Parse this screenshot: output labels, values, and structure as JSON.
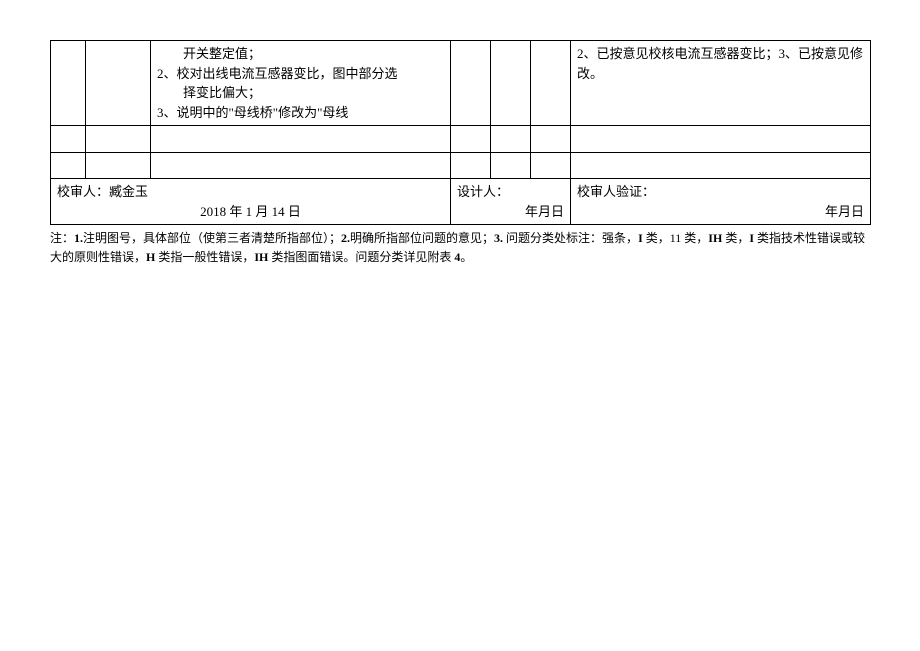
{
  "table": {
    "row1": {
      "col3_line1": "开关整定值；",
      "col3_line2": "2、校对出线电流互感器变比，图中部分选",
      "col3_line3": "择变比偏大；",
      "col3_line4": "3、说明中的\"母线桥\"修改为\"母线",
      "col7": "2、已按意见校核电流互感器变比；3、已按意见修改。"
    },
    "sig": {
      "left_label": "校审人：",
      "left_name": "臧金玉",
      "left_date": "2018 年 1 月 14 日",
      "mid_label": "设计人：",
      "mid_date": "年月日",
      "right_label": "校审人验证：",
      "right_date": "年月日"
    }
  },
  "note": {
    "prefix": "注：",
    "n1": "1.",
    "t1": "注明图号，具体部位（使第三者清楚所指部位）；",
    "n2": "2.",
    "t2": "明确所指部位问题的意见；",
    "n3": "3.",
    "t3": " 问题分类处标注：强条，",
    "i": "I",
    "t4": " 类，11 类，",
    "ih": "IH",
    "t5": " 类，",
    "i2": "I",
    "t6": " 类指技术性错误或较大的原则性错误，",
    "h": "H",
    "t7": " 类指一般性错误，",
    "ih2": "IH",
    "t8": " 类指图面错误。问题分类详见附表 ",
    "n4": "4",
    "t9": "。"
  }
}
